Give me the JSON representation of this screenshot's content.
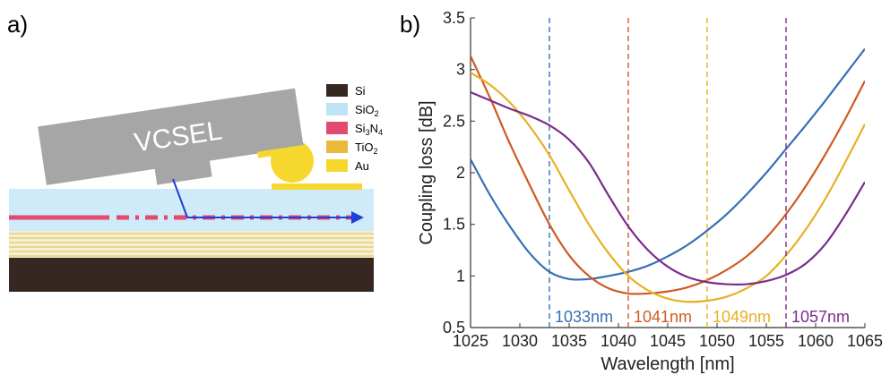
{
  "panel_a": {
    "label": "a)",
    "device_label": "VCSEL",
    "legend": [
      {
        "text": "Si",
        "color": "#362821"
      },
      {
        "text": "SiO",
        "sub": "2",
        "color": "#bfe3f6"
      },
      {
        "text": "Si",
        "sub": "3",
        "text2": "N",
        "sub2": "4",
        "color": "#e34a6f"
      },
      {
        "text": "TiO",
        "sub": "2",
        "color": "#e8b93a"
      },
      {
        "text": "Au",
        "color": "#f6d72e"
      }
    ]
  },
  "panel_b": {
    "label": "b)"
  },
  "chart_data": {
    "type": "line",
    "xlabel": "Wavelength [nm]",
    "ylabel": "Coupling loss [dB]",
    "xlim": [
      1025,
      1065
    ],
    "ylim": [
      0.5,
      3.5
    ],
    "xticks": [
      1025,
      1030,
      1035,
      1040,
      1045,
      1050,
      1055,
      1060,
      1065
    ],
    "yticks": [
      0.5,
      1,
      1.5,
      2,
      2.5,
      3,
      3.5
    ],
    "grid": false,
    "series": [
      {
        "name": "1033nm",
        "color": "#3670b5",
        "marker_x": 1033,
        "x": [
          1025,
          1027,
          1029,
          1031,
          1033,
          1035,
          1037,
          1039,
          1041,
          1043,
          1045,
          1047,
          1049,
          1051,
          1053,
          1055,
          1057,
          1059,
          1061,
          1063,
          1065
        ],
        "y": [
          2.13,
          1.78,
          1.48,
          1.22,
          1.04,
          0.97,
          0.97,
          1.0,
          1.04,
          1.1,
          1.19,
          1.3,
          1.44,
          1.6,
          1.79,
          2.0,
          2.23,
          2.46,
          2.7,
          2.95,
          3.2
        ]
      },
      {
        "name": "1041nm",
        "color": "#cf5a20",
        "marker_x": 1041,
        "x": [
          1025,
          1027,
          1029,
          1031,
          1033,
          1035,
          1037,
          1039,
          1041,
          1043,
          1045,
          1047,
          1049,
          1051,
          1053,
          1055,
          1057,
          1059,
          1061,
          1063,
          1065
        ],
        "y": [
          3.13,
          2.72,
          2.28,
          1.88,
          1.5,
          1.2,
          1.0,
          0.88,
          0.83,
          0.83,
          0.85,
          0.89,
          0.96,
          1.06,
          1.19,
          1.37,
          1.6,
          1.87,
          2.18,
          2.52,
          2.89
        ]
      },
      {
        "name": "1049nm",
        "color": "#e8b024",
        "marker_x": 1049,
        "x": [
          1025,
          1027,
          1029,
          1031,
          1033,
          1035,
          1037,
          1039,
          1041,
          1043,
          1045,
          1047,
          1049,
          1051,
          1053,
          1055,
          1057,
          1059,
          1061,
          1063,
          1065
        ],
        "y": [
          2.97,
          2.85,
          2.68,
          2.45,
          2.17,
          1.83,
          1.5,
          1.22,
          1.0,
          0.86,
          0.78,
          0.75,
          0.76,
          0.8,
          0.88,
          1.0,
          1.2,
          1.45,
          1.75,
          2.1,
          2.47
        ]
      },
      {
        "name": "1057nm",
        "color": "#7a2d8c",
        "marker_x": 1057,
        "x": [
          1025,
          1027,
          1029,
          1031,
          1033,
          1035,
          1037,
          1039,
          1041,
          1043,
          1045,
          1047,
          1049,
          1051,
          1053,
          1055,
          1057,
          1059,
          1061,
          1063,
          1065
        ],
        "y": [
          2.78,
          2.7,
          2.62,
          2.55,
          2.46,
          2.32,
          2.1,
          1.78,
          1.48,
          1.25,
          1.09,
          0.99,
          0.94,
          0.92,
          0.92,
          0.95,
          1.01,
          1.12,
          1.31,
          1.59,
          1.91
        ]
      }
    ]
  }
}
